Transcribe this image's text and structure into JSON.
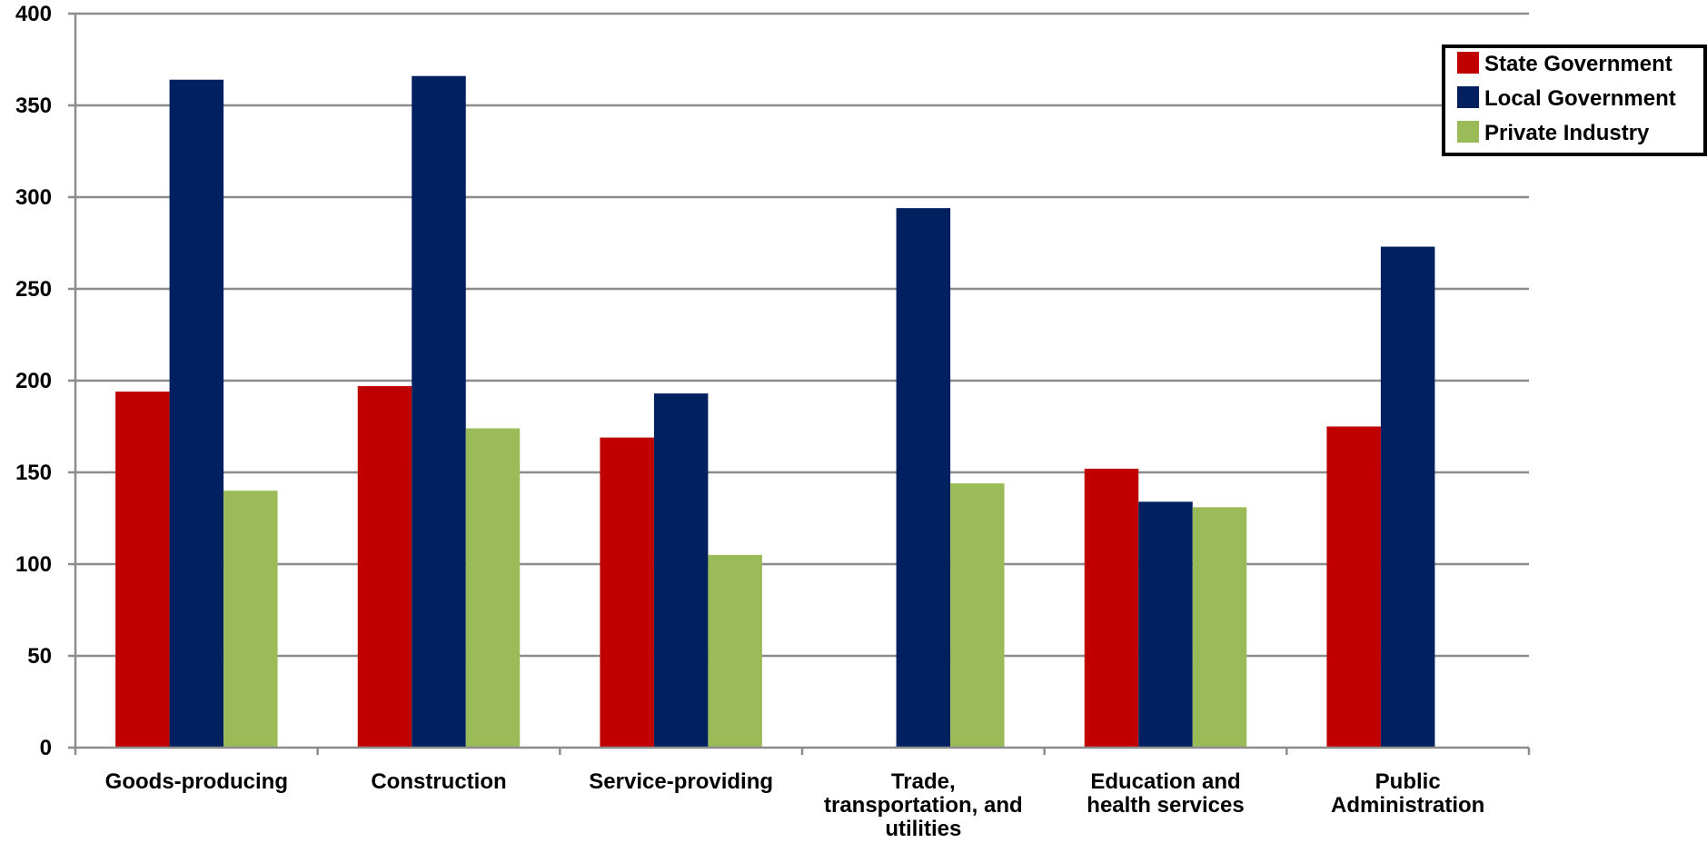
{
  "chart_data": {
    "type": "bar",
    "title": "",
    "xlabel": "",
    "ylabel": "",
    "ylim": [
      0,
      400
    ],
    "yticks": [
      0,
      50,
      100,
      150,
      200,
      250,
      300,
      350,
      400
    ],
    "grid": true,
    "legend_position": "top-right",
    "categories": [
      [
        "Goods-producing"
      ],
      [
        "Construction"
      ],
      [
        "Service-providing"
      ],
      [
        "Trade,",
        "transportation, and",
        "utilities"
      ],
      [
        "Education and",
        "health services"
      ],
      [
        "Public",
        "Administration"
      ]
    ],
    "series": [
      {
        "name": "State Government",
        "color": "#C00000",
        "values": [
          194,
          197,
          169,
          null,
          152,
          175
        ]
      },
      {
        "name": "Local Government",
        "color": "#002060",
        "values": [
          364,
          366,
          193,
          294,
          134,
          273
        ]
      },
      {
        "name": "Private Industry",
        "color": "#9BBB59",
        "values": [
          140,
          174,
          105,
          144,
          131,
          null
        ]
      }
    ]
  }
}
